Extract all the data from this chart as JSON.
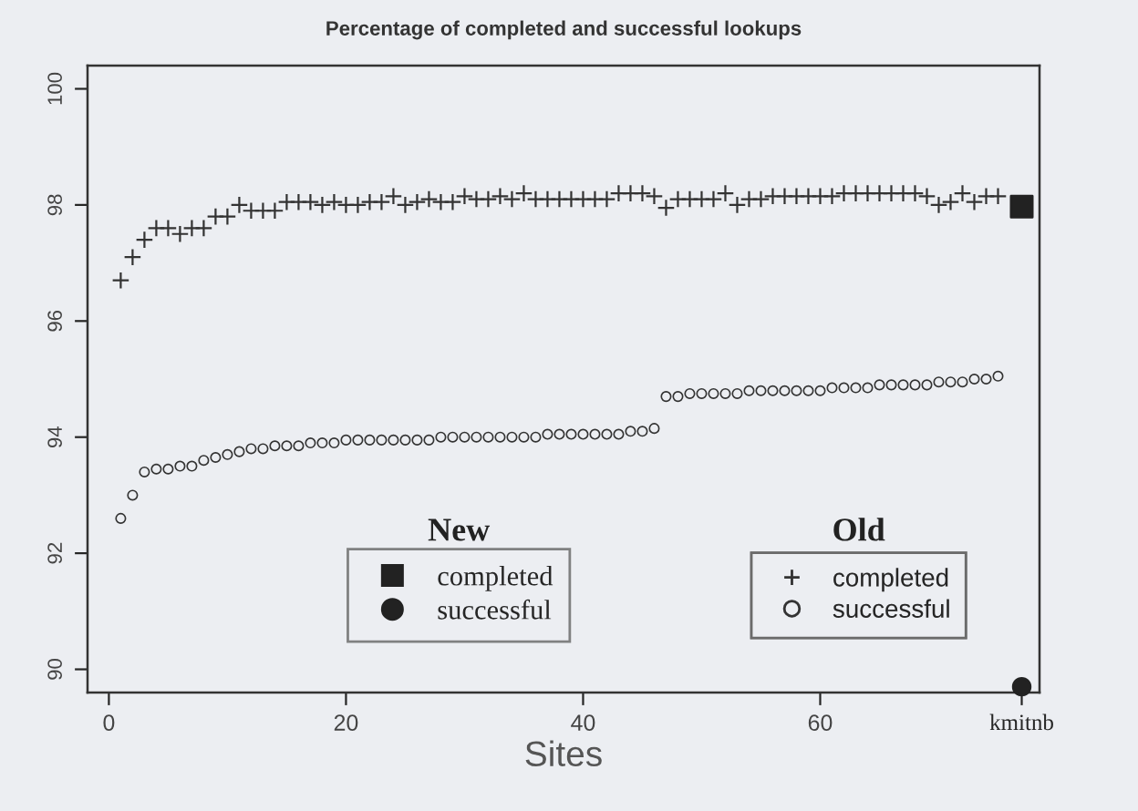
{
  "chart_data": {
    "type": "scatter",
    "title": "Percentage of completed and successful lookups",
    "xlabel": "Sites",
    "annotations": [
      "New",
      "Old"
    ],
    "xlim": [
      -1.8,
      78.5
    ],
    "ylim": [
      89.6,
      100.4
    ],
    "xticks": [
      0,
      20,
      40,
      60,
      {
        "value": 77,
        "label": "kmitnb"
      }
    ],
    "yticks": [
      90,
      92,
      94,
      96,
      98,
      100
    ],
    "legend": "bottom",
    "grid": false,
    "series": [
      {
        "name": "completed",
        "color": "#222222",
        "marker": "square",
        "x": [
          77
        ],
        "values": [
          97.97
        ]
      },
      {
        "name": "successful",
        "color": "#222222",
        "marker": "circle",
        "x": [
          77
        ],
        "values": [
          89.7
        ]
      },
      {
        "name": "completed",
        "color": "#333333",
        "marker": "cross",
        "x": [
          1,
          2,
          3,
          4,
          5,
          6,
          7,
          8,
          9,
          10,
          11,
          12,
          13,
          14,
          15,
          16,
          17,
          18,
          19,
          20,
          21,
          22,
          23,
          24,
          25,
          26,
          27,
          28,
          29,
          30,
          31,
          32,
          33,
          34,
          35,
          36,
          37,
          38,
          39,
          40,
          41,
          42,
          43,
          44,
          45,
          46,
          47,
          48,
          49,
          50,
          51,
          52,
          53,
          54,
          55,
          56,
          57,
          58,
          59,
          60,
          61,
          62,
          63,
          64,
          65,
          66,
          67,
          68,
          69,
          70,
          71,
          72,
          73,
          74,
          75
        ],
        "values": [
          96.7,
          97.1,
          97.4,
          97.6,
          97.6,
          97.5,
          97.6,
          97.6,
          97.8,
          97.8,
          98.0,
          97.9,
          97.9,
          97.9,
          98.05,
          98.05,
          98.05,
          98.0,
          98.05,
          98.0,
          98.0,
          98.05,
          98.05,
          98.15,
          98.0,
          98.05,
          98.1,
          98.05,
          98.05,
          98.15,
          98.1,
          98.1,
          98.15,
          98.1,
          98.2,
          98.1,
          98.1,
          98.1,
          98.1,
          98.1,
          98.1,
          98.1,
          98.2,
          98.2,
          98.2,
          98.15,
          97.95,
          98.1,
          98.1,
          98.1,
          98.1,
          98.2,
          98.0,
          98.1,
          98.1,
          98.15,
          98.15,
          98.15,
          98.15,
          98.15,
          98.15,
          98.2,
          98.2,
          98.2,
          98.2,
          98.2,
          98.2,
          98.2,
          98.15,
          98.0,
          98.05,
          98.2,
          98.05,
          98.15,
          98.15
        ]
      },
      {
        "name": "successful",
        "color": "#333333",
        "marker": "circle",
        "x": [
          1,
          2,
          3,
          4,
          5,
          6,
          7,
          8,
          9,
          10,
          11,
          12,
          13,
          14,
          15,
          16,
          17,
          18,
          19,
          20,
          21,
          22,
          23,
          24,
          25,
          26,
          27,
          28,
          29,
          30,
          31,
          32,
          33,
          34,
          35,
          36,
          37,
          38,
          39,
          40,
          41,
          42,
          43,
          44,
          45,
          46,
          47,
          48,
          49,
          50,
          51,
          52,
          53,
          54,
          55,
          56,
          57,
          58,
          59,
          60,
          61,
          62,
          63,
          64,
          65,
          66,
          67,
          68,
          69,
          70,
          71,
          72,
          73,
          74,
          75
        ],
        "values": [
          92.6,
          93.0,
          93.4,
          93.45,
          93.45,
          93.5,
          93.5,
          93.6,
          93.65,
          93.7,
          93.75,
          93.8,
          93.8,
          93.85,
          93.85,
          93.85,
          93.9,
          93.9,
          93.9,
          93.95,
          93.95,
          93.95,
          93.95,
          93.95,
          93.95,
          93.95,
          93.95,
          94.0,
          94.0,
          94.0,
          94.0,
          94.0,
          94.0,
          94.0,
          94.0,
          94.0,
          94.05,
          94.05,
          94.05,
          94.05,
          94.05,
          94.05,
          94.05,
          94.1,
          94.1,
          94.15,
          94.7,
          94.7,
          94.75,
          94.75,
          94.75,
          94.75,
          94.75,
          94.8,
          94.8,
          94.8,
          94.8,
          94.8,
          94.8,
          94.8,
          94.85,
          94.85,
          94.85,
          94.85,
          94.9,
          94.9,
          94.9,
          94.9,
          94.9,
          94.95,
          94.95,
          94.95,
          95.0,
          95.0,
          95.05
        ]
      }
    ]
  }
}
